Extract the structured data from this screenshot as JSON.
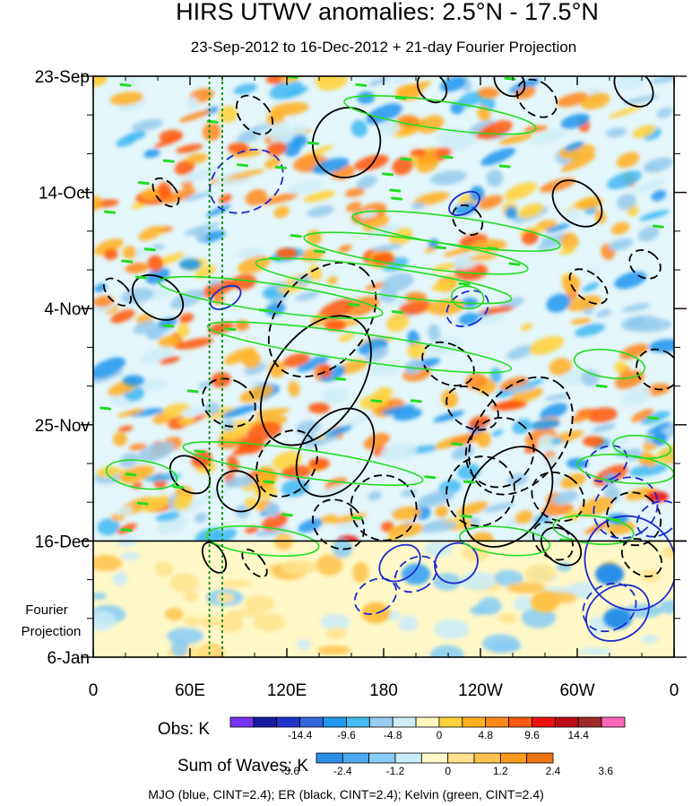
{
  "chart_data": {
    "type": "heatmap",
    "title": "HIRS UTWV anomalies: 2.5°N - 17.5°N",
    "subtitle": "23-Sep-2012 to 16-Dec-2012 + 21-day Fourier Projection",
    "x_ticks": [
      "0",
      "60E",
      "120E",
      "180",
      "120W",
      "60W",
      "0"
    ],
    "x_tick_values": [
      0,
      60,
      120,
      180,
      240,
      300,
      360
    ],
    "xlim": [
      0,
      360
    ],
    "y_ticks": [
      "23-Sep",
      "14-Oct",
      "4-Nov",
      "25-Nov",
      "16-Dec",
      "6-Jan"
    ],
    "y_tick_days": [
      0,
      21,
      42,
      63,
      84,
      105
    ],
    "ylim_days": [
      0,
      105
    ],
    "observation_end_day": 84,
    "projection_label": [
      "Fourier",
      "Projection"
    ],
    "reference_lines_lon": [
      72,
      80
    ],
    "obs_colorbar": {
      "label": "Obs: K",
      "colors": [
        "#7733ee",
        "#1a1aa0",
        "#2233cc",
        "#3366dd",
        "#2299ee",
        "#44bbf2",
        "#99ccee",
        "#cdeef5",
        "#fff7c0",
        "#ffd23c",
        "#ffb022",
        "#ff8a1c",
        "#ff5a10",
        "#ee1010",
        "#bb0c16",
        "#a02a2a",
        "#ff66bb"
      ],
      "tick_labels": [
        "-14.4",
        "-9.6",
        "-4.8",
        "0",
        "4.8",
        "9.6",
        "14.4"
      ]
    },
    "waves_colorbar": {
      "label": "Sum of Waves: K",
      "colors": [
        "#2c8fe8",
        "#4eaaf0",
        "#86ccf4",
        "#c8ecf8",
        "#fff8c8",
        "#ffe38c",
        "#ffc24a",
        "#f79a1e",
        "#f07510"
      ],
      "tick_labels": [
        "-3.6",
        "-2.4",
        "-1.2",
        "0",
        "1.2",
        "2.4",
        "3.6"
      ]
    },
    "footnote": "MJO (blue, CINT=2.4); ER (black, CINT=2.4); Kelvin (green, CINT=2.4)",
    "contour_colors": {
      "mjo": "#1a2ad0",
      "er": "#000000",
      "kelvin": "#22dd22"
    },
    "contour_styles": {
      "positive": "solid",
      "negative": "dashed"
    }
  }
}
